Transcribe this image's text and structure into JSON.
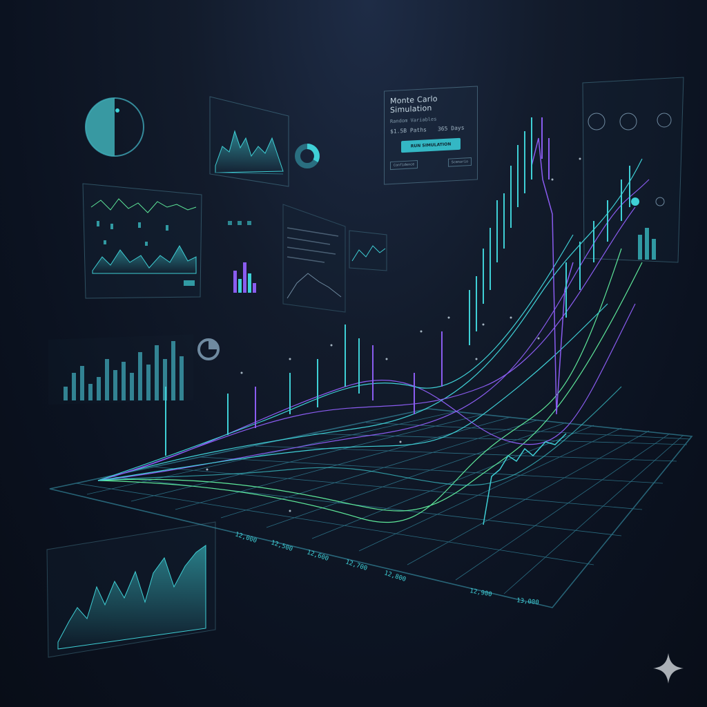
{
  "simulation_panel": {
    "title": "Monte Carlo Simulation",
    "subtitle": "Random Variables",
    "row_left": "$1.5B Paths",
    "row_right": "365 Days",
    "run_button": "RUN SIMULATION",
    "footer_left": "Confidence",
    "footer_right": "Scenario"
  },
  "timeline_labels": [
    "12,000",
    "12,500",
    "12,600",
    "12,700",
    "12,800",
    "12,900",
    "13,000"
  ],
  "colors": {
    "teal": "#3fd0d6",
    "green": "#5ee89a",
    "purple": "#8a5cf0",
    "grid": "#3fa8c0",
    "background": "#0b1220"
  },
  "icons": [
    "sparkle-icon"
  ]
}
